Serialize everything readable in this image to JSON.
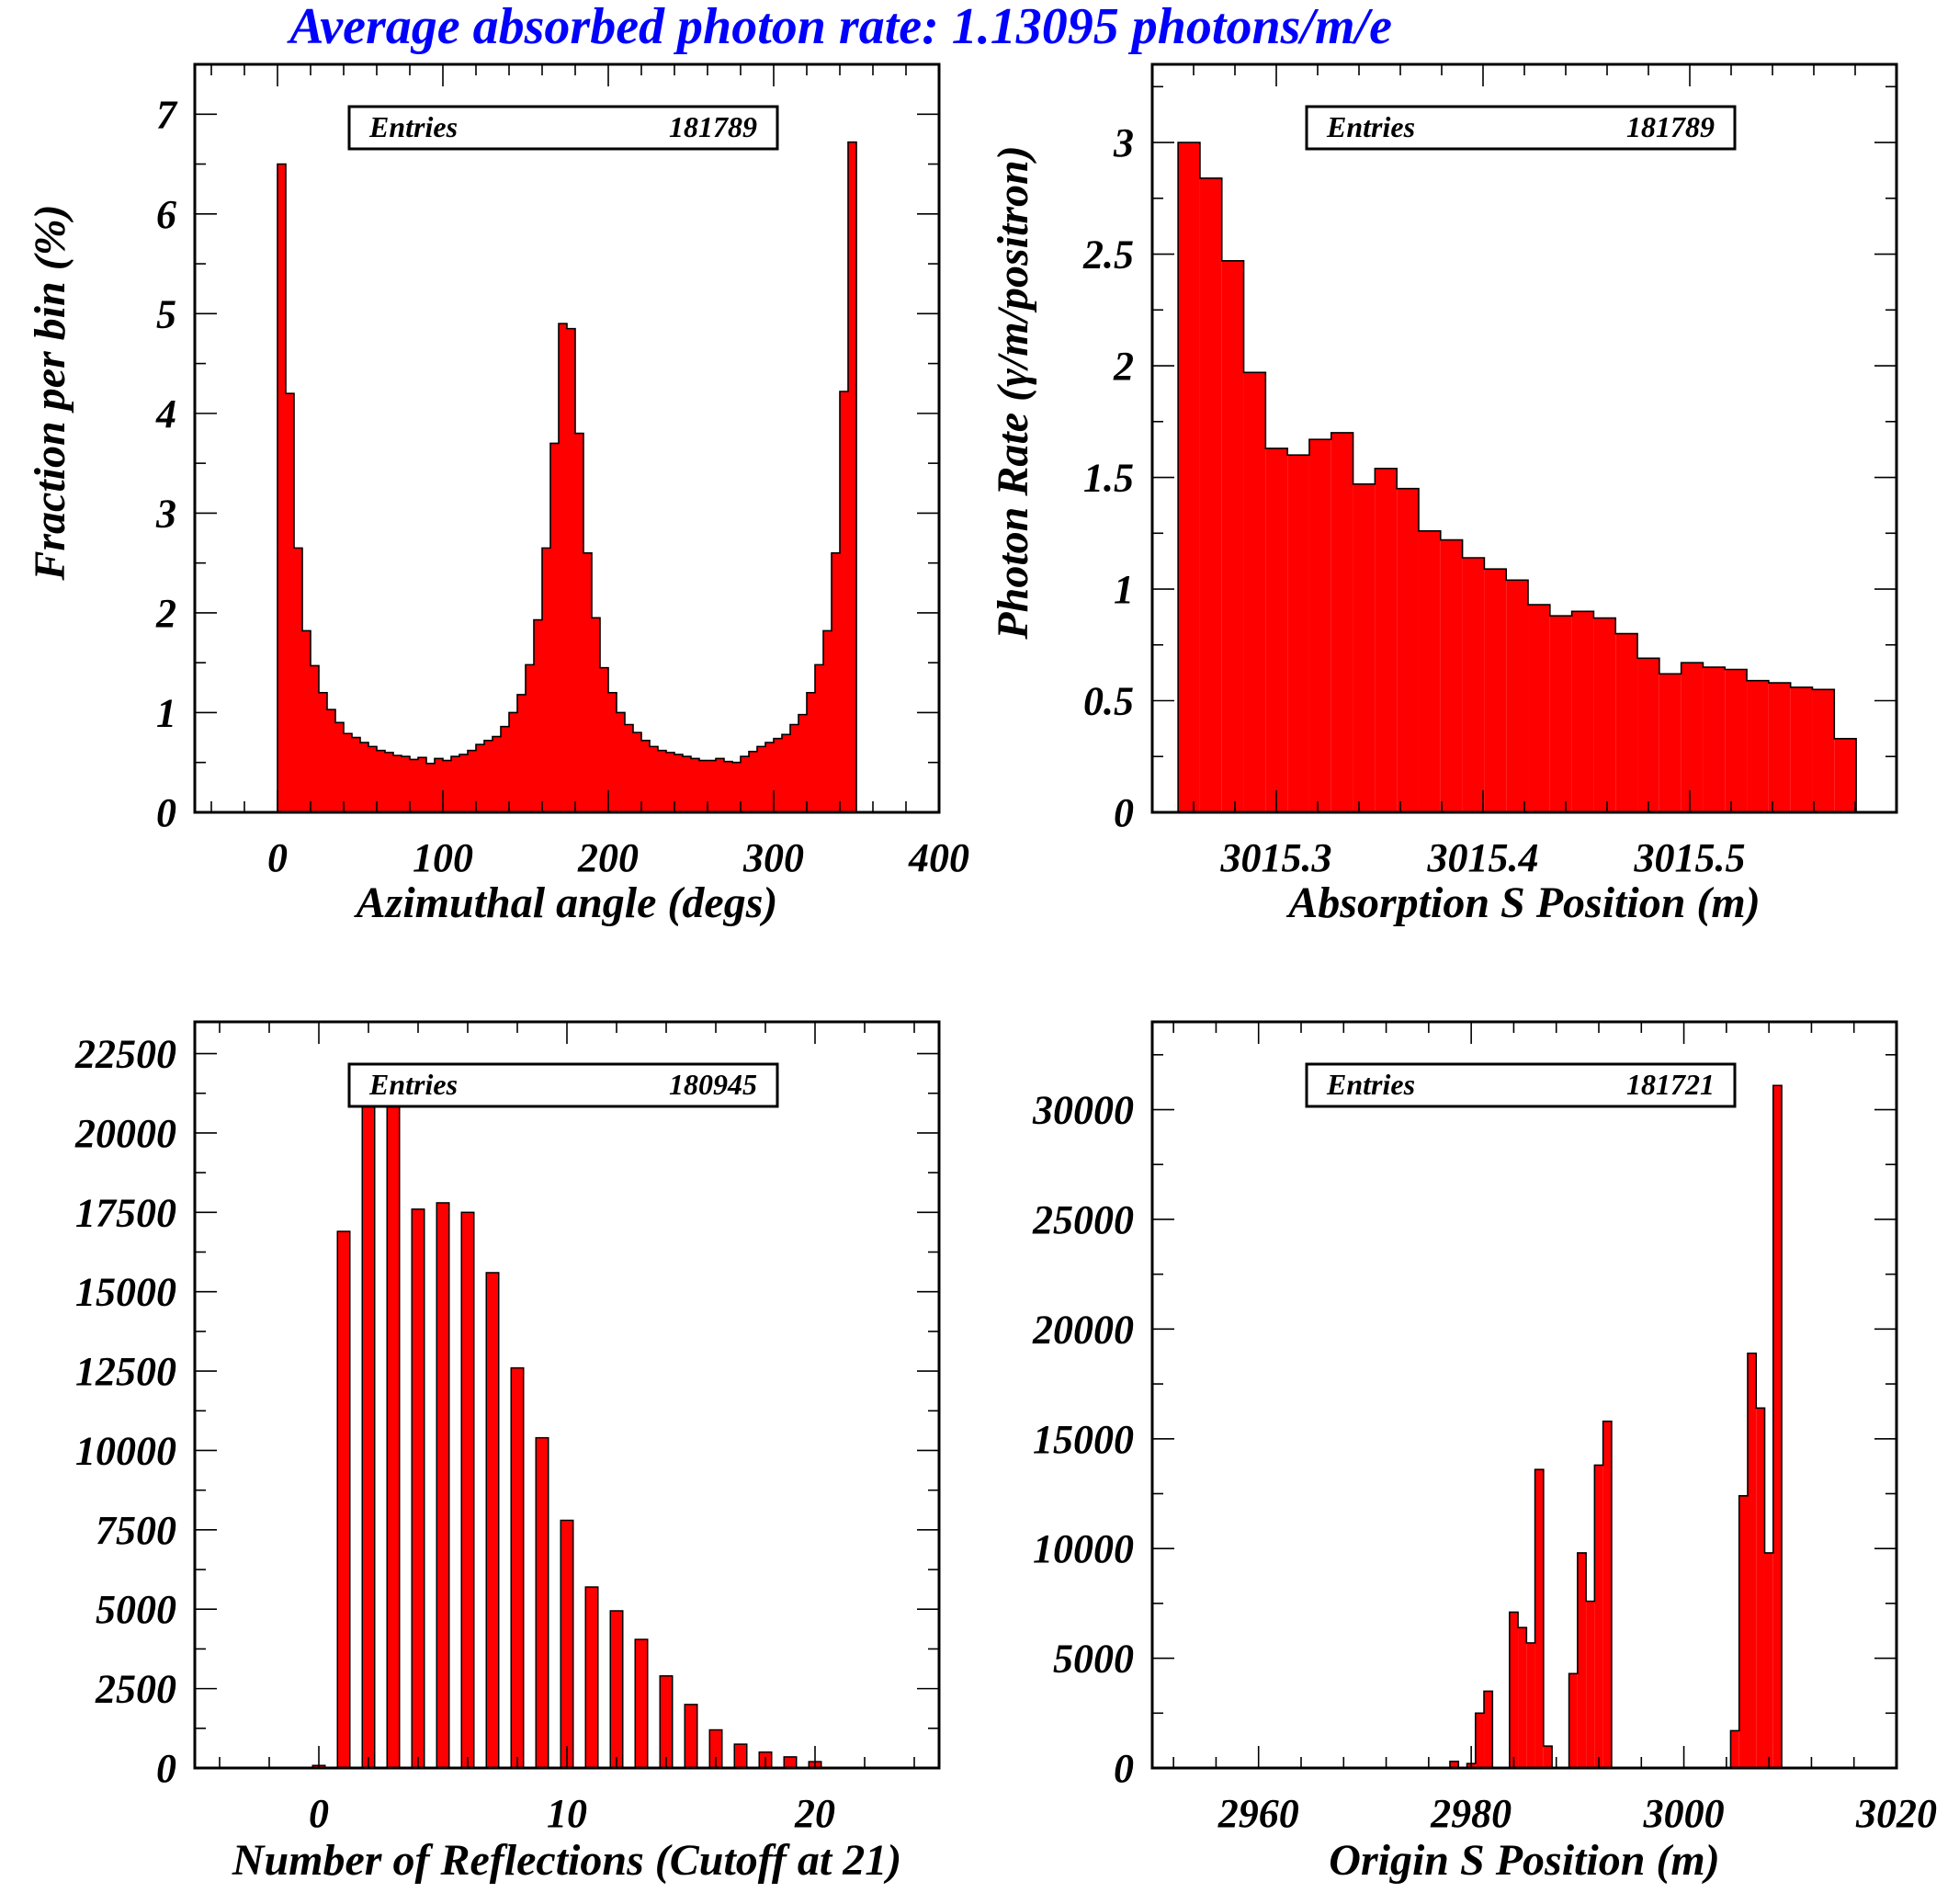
{
  "page_title": "Average absorbed photon rate: 1.13095 photons/m/e",
  "colors": {
    "title": "#0000ff",
    "bar_fill": "#ff0000",
    "bar_stroke": "#000000",
    "axis": "#000000"
  },
  "chart_data": [
    {
      "type": "bar",
      "title": "",
      "xlabel": "Azimuthal angle (degs)",
      "ylabel": "Fraction per bin (%)",
      "stats_label": "Entries",
      "stats_value": "181789",
      "xlim": [
        -50,
        400
      ],
      "ylim": [
        0,
        7.5
      ],
      "x_ticks": [
        0,
        100,
        200,
        300,
        400
      ],
      "x_tick_labels": [
        "0",
        "100",
        "200",
        "300",
        "400"
      ],
      "y_ticks": [
        0,
        1,
        2,
        3,
        4,
        5,
        6,
        7
      ],
      "y_tick_labels": [
        "0",
        "1",
        "2",
        "3",
        "4",
        "5",
        "6",
        "7"
      ],
      "bin_start": 0,
      "bin_width": 5,
      "values": [
        6.5,
        4.2,
        2.65,
        1.82,
        1.47,
        1.2,
        1.03,
        0.9,
        0.79,
        0.75,
        0.7,
        0.66,
        0.62,
        0.6,
        0.57,
        0.56,
        0.53,
        0.55,
        0.49,
        0.54,
        0.52,
        0.56,
        0.58,
        0.62,
        0.68,
        0.72,
        0.76,
        0.86,
        1.0,
        1.18,
        1.48,
        1.93,
        2.65,
        3.7,
        4.9,
        4.85,
        3.8,
        2.6,
        1.95,
        1.45,
        1.2,
        1.0,
        0.88,
        0.8,
        0.72,
        0.66,
        0.62,
        0.6,
        0.58,
        0.56,
        0.54,
        0.52,
        0.52,
        0.54,
        0.51,
        0.5,
        0.56,
        0.61,
        0.66,
        0.7,
        0.74,
        0.78,
        0.88,
        0.98,
        1.2,
        1.48,
        1.82,
        2.6,
        4.22,
        6.72
      ]
    },
    {
      "type": "bar",
      "title": "",
      "xlabel": "Absorption S Position (m)",
      "ylabel": "Photon Rate (γ/m/positron)",
      "stats_label": "Entries",
      "stats_value": "181789",
      "xlim": [
        3015.24,
        3015.6
      ],
      "ylim": [
        0,
        3.35
      ],
      "x_ticks": [
        3015.3,
        3015.4,
        3015.5
      ],
      "x_tick_labels": [
        "3015.3",
        "3015.4",
        "3015.5"
      ],
      "y_ticks": [
        0,
        0.5,
        1,
        1.5,
        2,
        2.5,
        3
      ],
      "y_tick_labels": [
        "0",
        "0.5",
        "1",
        "1.5",
        "2",
        "2.5",
        "3"
      ],
      "bin_start": 3015.2525,
      "bin_width": 0.01058,
      "values": [
        3.0,
        2.84,
        2.47,
        1.97,
        1.63,
        1.6,
        1.67,
        1.7,
        1.47,
        1.54,
        1.45,
        1.26,
        1.22,
        1.14,
        1.09,
        1.04,
        0.93,
        0.88,
        0.9,
        0.87,
        0.8,
        0.69,
        0.62,
        0.67,
        0.65,
        0.64,
        0.59,
        0.58,
        0.56,
        0.55,
        0.33
      ]
    },
    {
      "type": "bar",
      "title": "",
      "xlabel": "Number of Reflections (Cutoff at 21)",
      "ylabel": "",
      "stats_label": "Entries",
      "stats_value": "180945",
      "xlim": [
        -5,
        25
      ],
      "ylim": [
        0,
        23500
      ],
      "x_ticks": [
        0,
        10,
        20
      ],
      "x_tick_labels": [
        "0",
        "10",
        "20"
      ],
      "y_ticks": [
        0,
        2500,
        5000,
        7500,
        10000,
        12500,
        15000,
        17500,
        20000,
        22500
      ],
      "y_tick_labels": [
        "0",
        "2500",
        "5000",
        "7500",
        "10000",
        "12500",
        "15000",
        "17500",
        "20000",
        "22500"
      ],
      "categories": [
        0,
        1,
        2,
        3,
        4,
        5,
        6,
        7,
        8,
        9,
        10,
        11,
        12,
        13,
        14,
        15,
        16,
        17,
        18,
        19,
        20,
        21
      ],
      "bar_width": 0.5,
      "values": [
        80,
        16900,
        21000,
        21200,
        17600,
        17800,
        17500,
        15600,
        12600,
        10400,
        7800,
        5700,
        4950,
        4050,
        2900,
        2000,
        1200,
        750,
        500,
        350,
        200,
        20
      ]
    },
    {
      "type": "bar",
      "title": "",
      "xlabel": "Origin S Position (m)",
      "ylabel": "",
      "stats_label": "Entries",
      "stats_value": "181721",
      "xlim": [
        2950,
        3020
      ],
      "ylim": [
        0,
        34000
      ],
      "x_ticks": [
        2960,
        2980,
        3000,
        3020
      ],
      "x_tick_labels": [
        "2960",
        "2980",
        "3000",
        "3020"
      ],
      "y_ticks": [
        0,
        5000,
        10000,
        15000,
        20000,
        25000,
        30000
      ],
      "y_tick_labels": [
        "0",
        "5000",
        "10000",
        "15000",
        "20000",
        "25000",
        "30000"
      ],
      "bin_start": 2978,
      "bin_width": 0.8,
      "values": [
        300,
        0,
        200,
        2500,
        3500,
        0,
        0,
        7100,
        6400,
        5700,
        13600,
        1000,
        0,
        0,
        4300,
        9800,
        7600,
        13800,
        15800,
        0,
        0,
        0,
        0,
        0,
        0,
        0,
        0,
        0,
        0,
        0,
        0,
        0,
        0,
        1700,
        12400,
        18900,
        16400,
        9800,
        31100
      ]
    }
  ]
}
